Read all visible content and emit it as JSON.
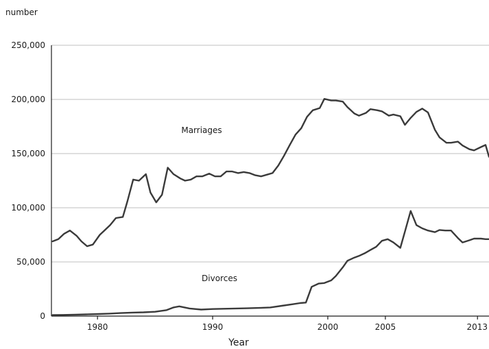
{
  "chart_data": {
    "type": "line",
    "ylabel": "number",
    "xlabel": "Year",
    "ylim": [
      0,
      250000
    ],
    "xlim": [
      1976,
      2014
    ],
    "yticks": [
      0,
      50000,
      100000,
      150000,
      200000,
      250000
    ],
    "ytick_labels": [
      "0",
      "50,000",
      "100,000",
      "150,000",
      "200,000",
      "250,000"
    ],
    "xticks": [
      1980,
      1990,
      2000,
      2005,
      2013
    ],
    "xtick_labels": [
      "1980",
      "1990",
      "2000",
      "2005",
      "2013"
    ],
    "grid": true,
    "series": [
      {
        "name": "Marriages",
        "color": "#3a3a3a",
        "x": [
          1976.1,
          1976.6,
          1977.1,
          1977.6,
          1978.2,
          1978.6,
          1979.1,
          1979.6,
          1980.2,
          1980.6,
          1981.1,
          1981.6,
          1982.2,
          1982.6,
          1983.1,
          1983.6,
          1984.2,
          1984.6,
          1985.1,
          1985.6,
          1986.1,
          1986.6,
          1987.2,
          1987.6,
          1988.1,
          1988.6,
          1989.1,
          1989.7,
          1990.2,
          1990.7,
          1991.2,
          1991.7,
          1992.2,
          1992.7,
          1993.2,
          1993.7,
          1994.2,
          1994.7,
          1995.2,
          1995.7,
          1996.2,
          1996.7,
          1997.2,
          1997.7,
          1998.2,
          1998.7,
          1999.3,
          1999.7,
          2000.3,
          2000.7,
          2001.3,
          2001.7,
          2002.3,
          2002.7,
          2003.3,
          2003.7,
          2004.3,
          2004.7,
          2005.3,
          2005.7,
          2006.3,
          2006.7,
          2007.2,
          2007.7,
          2008.2,
          2008.7,
          2009.3,
          2009.7,
          2010.3,
          2010.7,
          2011.3,
          2011.7,
          2012.3,
          2012.7,
          2013.3,
          2013.7,
          2014.0
        ],
        "values": [
          69000,
          71000,
          76000,
          79000,
          74000,
          69000,
          64500,
          66000,
          75000,
          79000,
          84000,
          90500,
          91500,
          106000,
          126000,
          125000,
          131000,
          114000,
          105000,
          112000,
          137000,
          131000,
          127000,
          125000,
          126000,
          129000,
          129000,
          131500,
          129000,
          129000,
          133500,
          133500,
          132000,
          133000,
          132000,
          130000,
          129000,
          130500,
          132000,
          139000,
          148000,
          158000,
          167500,
          173500,
          184000,
          190000,
          192000,
          200500,
          199000,
          199000,
          198000,
          193000,
          187000,
          185000,
          187500,
          191000,
          190000,
          189000,
          185000,
          186000,
          184500,
          176500,
          183000,
          188500,
          191500,
          188000,
          172000,
          165000,
          160000,
          160000,
          161000,
          157500,
          154000,
          153000,
          156000,
          158000,
          147000
        ]
      },
      {
        "name": "Divorces",
        "color": "#3a3a3a",
        "x": [
          1976.1,
          1977.0,
          1978.0,
          1979.0,
          1980.0,
          1981.0,
          1982.0,
          1983.0,
          1984.0,
          1985.0,
          1986.0,
          1986.6,
          1987.1,
          1988.0,
          1989.0,
          1990.0,
          1991.0,
          1992.0,
          1993.0,
          1994.0,
          1995.0,
          1996.0,
          1997.0,
          1997.6,
          1998.1,
          1998.6,
          1999.2,
          1999.7,
          2000.3,
          2000.7,
          2001.3,
          2001.7,
          2002.3,
          2002.7,
          2003.2,
          2003.7,
          2004.2,
          2004.7,
          2005.2,
          2005.7,
          2006.3,
          2006.7,
          2007.2,
          2007.7,
          2008.2,
          2008.7,
          2009.3,
          2009.7,
          2010.2,
          2010.7,
          2011.3,
          2011.7,
          2012.3,
          2012.7,
          2013.3,
          2013.7,
          2014.0
        ],
        "values": [
          1000,
          1100,
          1300,
          1600,
          1900,
          2300,
          2800,
          3200,
          3500,
          4000,
          5500,
          8000,
          9000,
          7000,
          6000,
          6500,
          6800,
          7000,
          7200,
          7500,
          8000,
          9500,
          11000,
          12000,
          12500,
          27000,
          30000,
          30500,
          33000,
          37000,
          45000,
          51000,
          54000,
          55500,
          58000,
          61000,
          64000,
          69500,
          71000,
          68000,
          63000,
          78000,
          97000,
          84000,
          81000,
          79000,
          77500,
          79500,
          79000,
          79000,
          72000,
          68000,
          70000,
          71500,
          71500,
          71000,
          71000
        ]
      }
    ],
    "annotations": [
      {
        "text": "Marriages"
      },
      {
        "text": "Divorces"
      }
    ]
  }
}
